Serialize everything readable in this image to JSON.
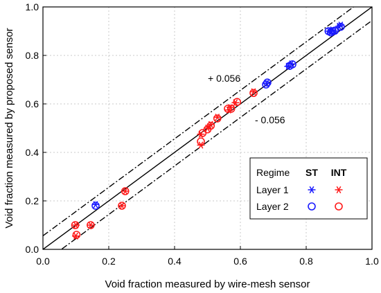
{
  "chart_data": {
    "type": "scatter",
    "xlabel": "Void fraction measured by wire-mesh sensor",
    "ylabel": "Void fraction measured by proposed sensor",
    "xlim": [
      0.0,
      1.0
    ],
    "ylim": [
      0.0,
      1.0
    ],
    "xticks": [
      "0.0",
      "0.2",
      "0.4",
      "0.6",
      "0.8",
      "1.0"
    ],
    "yticks": [
      "0.0",
      "0.2",
      "0.4",
      "0.6",
      "0.8",
      "1.0"
    ],
    "grid": true,
    "reference_lines": [
      {
        "style": "solid",
        "offset": 0.0
      },
      {
        "style": "dash-dot",
        "offset": 0.056
      },
      {
        "style": "dash-dot",
        "offset": -0.056
      }
    ],
    "annotations": [
      "+ 0.056",
      "- 0.056"
    ],
    "legend": {
      "placement": "bottom-right",
      "header": {
        "title": "Regime",
        "col1": "ST",
        "col2": "INT"
      },
      "rows": [
        "Layer 1",
        "Layer 2"
      ]
    },
    "colors": {
      "ST": "#1a1aff",
      "INT": "#ff1a1a"
    },
    "series": [
      {
        "regime": "ST",
        "layer": "Layer 1",
        "marker": "asterisk",
        "color": "#1a1aff",
        "points": [
          [
            0.16,
            0.185
          ],
          [
            0.68,
            0.685
          ],
          [
            0.745,
            0.755
          ],
          [
            0.755,
            0.765
          ],
          [
            0.87,
            0.9
          ],
          [
            0.875,
            0.9
          ],
          [
            0.88,
            0.905
          ],
          [
            0.885,
            0.9
          ],
          [
            0.9,
            0.92
          ],
          [
            0.905,
            0.925
          ]
        ]
      },
      {
        "regime": "ST",
        "layer": "Layer 2",
        "marker": "circle",
        "color": "#1a1aff",
        "points": [
          [
            0.16,
            0.18
          ],
          [
            0.678,
            0.68
          ],
          [
            0.682,
            0.688
          ],
          [
            0.75,
            0.757
          ],
          [
            0.758,
            0.763
          ],
          [
            0.868,
            0.9
          ],
          [
            0.875,
            0.895
          ],
          [
            0.88,
            0.9
          ],
          [
            0.887,
            0.902
          ],
          [
            0.905,
            0.918
          ]
        ]
      },
      {
        "regime": "INT",
        "layer": "Layer 1",
        "marker": "asterisk",
        "color": "#ff1a1a",
        "points": [
          [
            0.1,
            0.1
          ],
          [
            0.1,
            0.055
          ],
          [
            0.145,
            0.1
          ],
          [
            0.24,
            0.18
          ],
          [
            0.25,
            0.24
          ],
          [
            0.48,
            0.43
          ],
          [
            0.48,
            0.475
          ],
          [
            0.5,
            0.5
          ],
          [
            0.51,
            0.515
          ],
          [
            0.53,
            0.545
          ],
          [
            0.565,
            0.575
          ],
          [
            0.57,
            0.585
          ],
          [
            0.585,
            0.605
          ],
          [
            0.64,
            0.65
          ]
        ]
      },
      {
        "regime": "INT",
        "layer": "Layer 2",
        "marker": "circle",
        "color": "#ff1a1a",
        "points": [
          [
            0.098,
            0.1
          ],
          [
            0.102,
            0.06
          ],
          [
            0.145,
            0.1
          ],
          [
            0.24,
            0.18
          ],
          [
            0.25,
            0.24
          ],
          [
            0.48,
            0.445
          ],
          [
            0.485,
            0.48
          ],
          [
            0.5,
            0.495
          ],
          [
            0.51,
            0.51
          ],
          [
            0.53,
            0.54
          ],
          [
            0.562,
            0.58
          ],
          [
            0.572,
            0.58
          ],
          [
            0.59,
            0.608
          ],
          [
            0.64,
            0.645
          ]
        ]
      }
    ]
  }
}
